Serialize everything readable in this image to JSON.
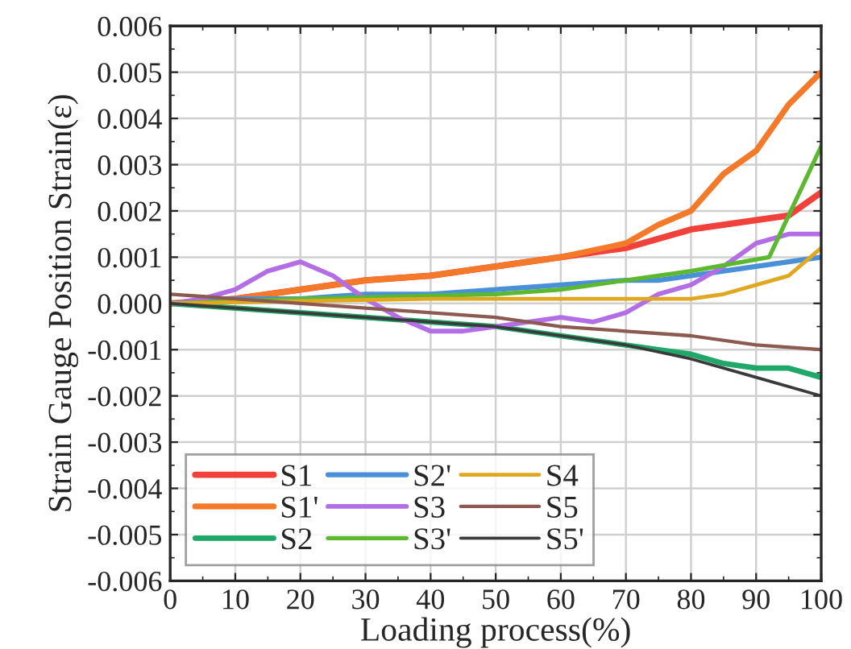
{
  "chart_data": {
    "type": "line",
    "xlabel": "Loading process(%)",
    "ylabel": "Strain Gauge Position Strain(ε)",
    "xlim": [
      0,
      100
    ],
    "xticks": [
      0,
      10,
      20,
      30,
      40,
      50,
      60,
      70,
      80,
      90,
      100
    ],
    "ylim": [
      -0.006,
      0.006
    ],
    "yticks": [
      {
        "value": -0.006,
        "label": "-0.006"
      },
      {
        "value": -0.005,
        "label": "-0.005"
      },
      {
        "value": -0.004,
        "label": "-0.004"
      },
      {
        "value": -0.003,
        "label": "-0.003"
      },
      {
        "value": -0.002,
        "label": "-0.002"
      },
      {
        "value": -0.001,
        "label": "-0.001"
      },
      {
        "value": 0,
        "label": "0.000"
      },
      {
        "value": 0.001,
        "label": "0.001"
      },
      {
        "value": 0.002,
        "label": "0.002"
      },
      {
        "value": 0.003,
        "label": "0.003"
      },
      {
        "value": 0.004,
        "label": "0.004"
      },
      {
        "value": 0.005,
        "label": "0.005"
      },
      {
        "value": 0.006,
        "label": "0.006"
      }
    ],
    "grid": true,
    "legend": "bottom left",
    "marker": "none",
    "line_style": "solid",
    "x": [
      0,
      10,
      20,
      30,
      40,
      50,
      60,
      70,
      75,
      80,
      85,
      90,
      95,
      100
    ],
    "series": [
      {
        "name": "S1",
        "color": "#f0413a",
        "values": [
          0,
          0.0001,
          0.0003,
          0.0005,
          0.0006,
          0.0008,
          0.001,
          0.0012,
          0.0014,
          0.0016,
          0.0017,
          0.0018,
          0.0019,
          0.0024
        ]
      },
      {
        "name": "S1'",
        "color": "#f47a2a",
        "values": [
          0,
          0.0001,
          0.0003,
          0.0005,
          0.0006,
          0.0008,
          0.001,
          0.0013,
          0.0017,
          0.002,
          0.0028,
          0.0033,
          0.0043,
          0.005
        ]
      },
      {
        "name": "S2",
        "color": "#1fa86a",
        "values": [
          0,
          -0.0001,
          -0.0002,
          -0.0003,
          -0.0004,
          -0.0005,
          -0.0007,
          -0.0009,
          -0.001,
          -0.0011,
          -0.0013,
          -0.0014,
          -0.0014,
          -0.0016
        ]
      },
      {
        "name": "S2'",
        "color": "#4a90d9",
        "values": [
          0,
          0.0001,
          0.0001,
          0.0002,
          0.0002,
          0.0003,
          0.0004,
          0.0005,
          0.0005,
          0.0006,
          0.0007,
          0.0008,
          0.0009,
          0.001
        ]
      },
      {
        "name": "S3",
        "x": [
          0,
          5,
          10,
          15,
          20,
          25,
          30,
          35,
          40,
          45,
          50,
          55,
          60,
          65,
          70,
          75,
          80,
          85,
          90,
          95,
          100
        ],
        "color": "#b36ee6",
        "values": [
          0,
          0.0001,
          0.0003,
          0.0007,
          0.0009,
          0.0006,
          0.0001,
          -0.0003,
          -0.0006,
          -0.0006,
          -0.0005,
          -0.0004,
          -0.0003,
          -0.0004,
          -0.0002,
          0.0002,
          0.0004,
          0.0008,
          0.0013,
          0.0015,
          0.0015
        ]
      },
      {
        "name": "S3'",
        "x": [
          0,
          20,
          50,
          60,
          70,
          80,
          92,
          100
        ],
        "color": "#5cb82e",
        "values": [
          0,
          0.0001,
          0.0002,
          0.0003,
          0.0005,
          0.0007,
          0.001,
          0.0034
        ]
      },
      {
        "name": "S4",
        "x": [
          0,
          40,
          80,
          85,
          90,
          95,
          100
        ],
        "color": "#e0a820",
        "values": [
          0,
          0.0001,
          0.0001,
          0.0002,
          0.0004,
          0.0006,
          0.0012
        ]
      },
      {
        "name": "S5",
        "x": [
          0,
          10,
          20,
          30,
          40,
          50,
          60,
          70,
          80,
          90,
          100
        ],
        "color": "#8c5a50",
        "values": [
          0.0002,
          0.0001,
          0,
          -0.0001,
          -0.0002,
          -0.0003,
          -0.0005,
          -0.0006,
          -0.0007,
          -0.0009,
          -0.001
        ]
      },
      {
        "name": "S5'",
        "x": [
          0,
          10,
          20,
          30,
          40,
          50,
          60,
          70,
          80,
          90,
          100
        ],
        "color": "#3a3a3a",
        "values": [
          0,
          -0.0001,
          -0.0002,
          -0.0003,
          -0.0004,
          -0.0005,
          -0.0007,
          -0.0009,
          -0.0012,
          -0.0016,
          -0.002
        ]
      }
    ]
  }
}
